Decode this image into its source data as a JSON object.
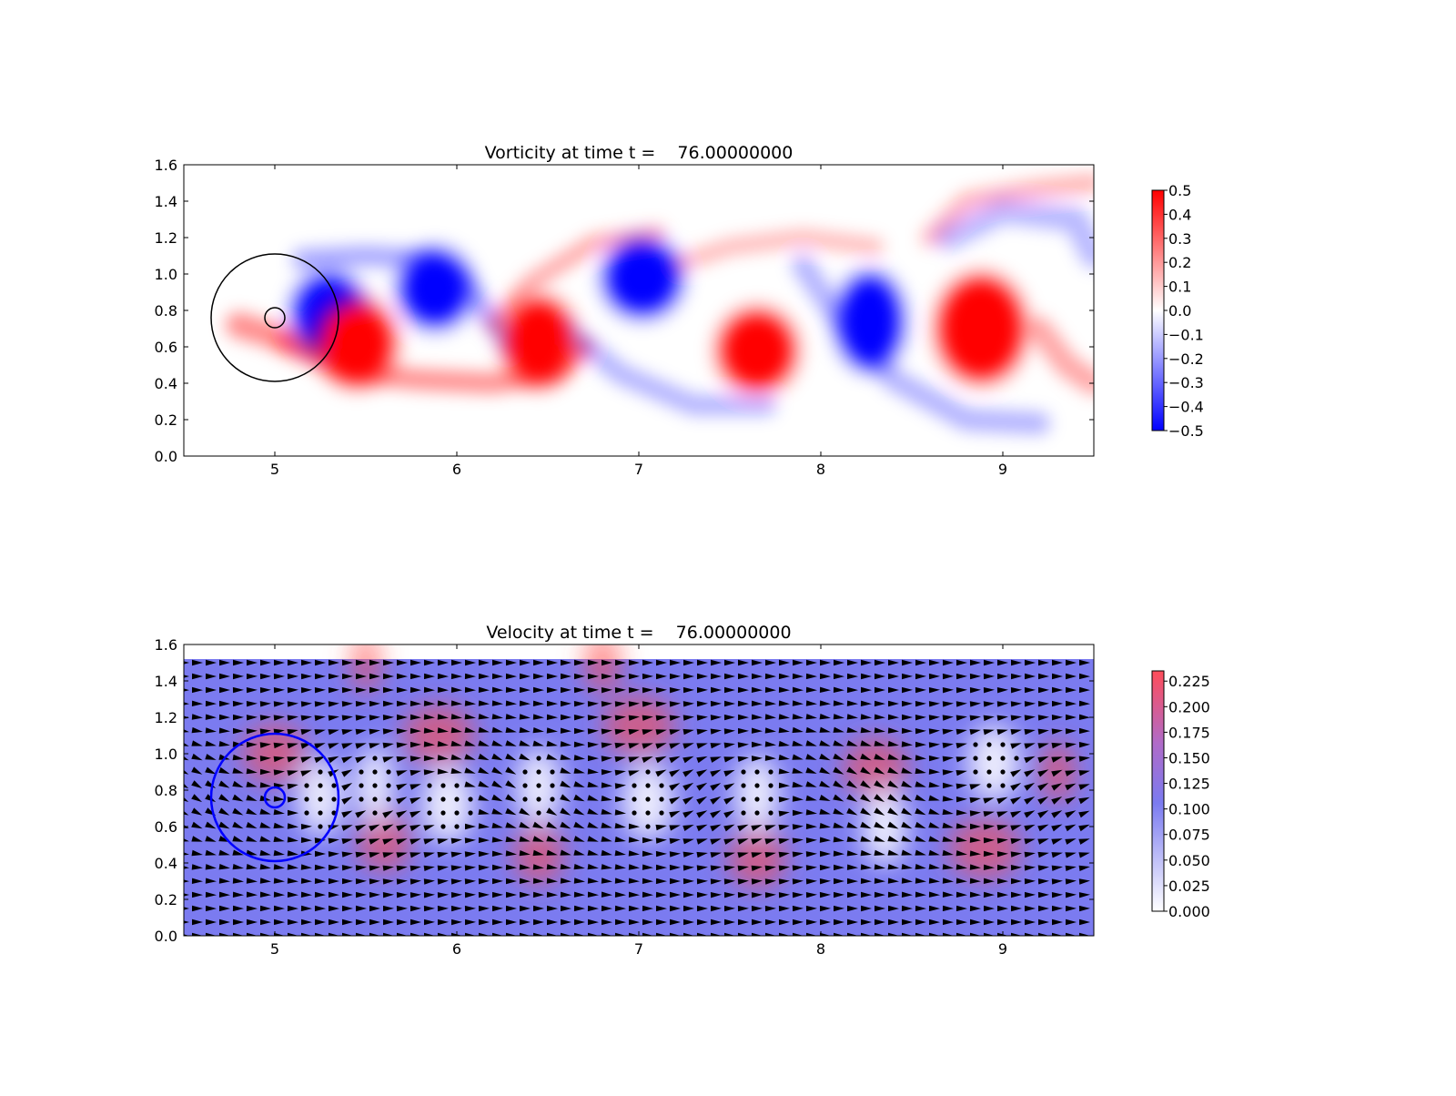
{
  "chart_data": [
    {
      "type": "heatmap",
      "title": "Vorticity at time t =    76.00000000",
      "xlabel": "",
      "ylabel": "",
      "xlim": [
        4.5,
        9.5
      ],
      "ylim": [
        0.0,
        1.6
      ],
      "xticks": [
        "5",
        "6",
        "7",
        "8",
        "9"
      ],
      "yticks": [
        "0.0",
        "0.2",
        "0.4",
        "0.6",
        "0.8",
        "1.0",
        "1.2",
        "1.4",
        "1.6"
      ],
      "colormap": "bwr",
      "clim": [
        -0.5,
        0.5
      ],
      "colorbar_ticks": [
        "0.5",
        "0.4",
        "0.3",
        "0.2",
        "0.1",
        "0.0",
        "−0.1",
        "−0.2",
        "−0.3",
        "−0.4",
        "−0.5"
      ],
      "colors": {
        "positive": "#ff0000",
        "negative": "#0000ff",
        "zero": "#ffffff",
        "outline": "#000000"
      },
      "vortices": [
        {
          "x": 5.3,
          "y": 0.78,
          "value": -0.5
        },
        {
          "x": 5.45,
          "y": 0.62,
          "value": 0.5
        },
        {
          "x": 5.88,
          "y": 0.92,
          "value": -0.5
        },
        {
          "x": 6.45,
          "y": 0.63,
          "value": 0.5
        },
        {
          "x": 7.02,
          "y": 0.98,
          "value": -0.5
        },
        {
          "x": 7.65,
          "y": 0.58,
          "value": 0.5
        },
        {
          "x": 8.27,
          "y": 0.74,
          "value": -0.5
        },
        {
          "x": 8.88,
          "y": 0.7,
          "value": 0.5
        }
      ],
      "circles": [
        {
          "cx": 5.0,
          "cy": 0.76,
          "r": 0.35
        },
        {
          "cx": 5.0,
          "cy": 0.76,
          "r": 0.055
        }
      ]
    },
    {
      "type": "heatmap",
      "title": "Velocity at time t =    76.00000000",
      "xlabel": "",
      "ylabel": "",
      "xlim": [
        4.5,
        9.5
      ],
      "ylim": [
        0.0,
        1.6
      ],
      "xticks": [
        "5",
        "6",
        "7",
        "8",
        "9"
      ],
      "yticks": [
        "0.0",
        "0.2",
        "0.4",
        "0.6",
        "0.8",
        "1.0",
        "1.2",
        "1.4",
        "1.6"
      ],
      "colormap": "white-blue-red",
      "clim": [
        0.0,
        0.235
      ],
      "colorbar_ticks": [
        "0.225",
        "0.200",
        "0.175",
        "0.150",
        "0.125",
        "0.100",
        "0.075",
        "0.050",
        "0.025",
        "0.000"
      ],
      "colors": {
        "low": "#ffffff",
        "mid": "#7b7bf0",
        "high": "#ff4d4d",
        "arrows": "#000000",
        "outline": "#0000ff"
      },
      "field_top": 1.52,
      "quiver": "velocity arrows with stagnant dots in vortex cores",
      "circles": [
        {
          "cx": 5.0,
          "cy": 0.76,
          "r": 0.35
        },
        {
          "cx": 5.0,
          "cy": 0.76,
          "r": 0.055
        }
      ]
    }
  ]
}
